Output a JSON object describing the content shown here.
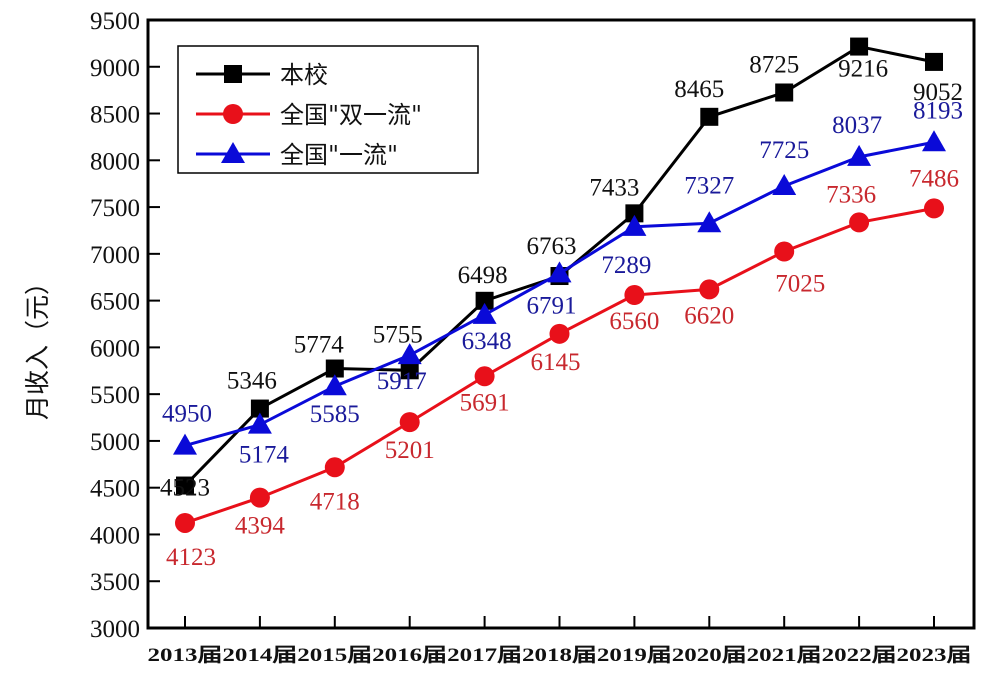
{
  "chart_data": {
    "type": "line",
    "title": "",
    "xlabel": "",
    "ylabel": "月收入（元）",
    "ylim": [
      3000,
      9500
    ],
    "yticks": [
      3000,
      3500,
      4000,
      4500,
      5000,
      5500,
      6000,
      6500,
      7000,
      7500,
      8000,
      8500,
      9000,
      9500
    ],
    "categories": [
      "2013届",
      "2014届",
      "2015届",
      "2016届",
      "2017届",
      "2018届",
      "2019届",
      "2020届",
      "2021届",
      "2022届",
      "2023届"
    ],
    "grid": false,
    "legend_position": "upper-left",
    "series": [
      {
        "name": "本校",
        "color": "#000000",
        "marker": "square",
        "values": [
          4523,
          5346,
          5774,
          5755,
          6498,
          6763,
          7433,
          8465,
          8725,
          9216,
          9052
        ]
      },
      {
        "name": "全国\"双一流\"",
        "color": "#e8101a",
        "marker": "circle",
        "values": [
          4123,
          4394,
          4718,
          5201,
          5691,
          6145,
          6560,
          6620,
          7025,
          7336,
          7486
        ]
      },
      {
        "name": "全国\"一流\"",
        "color": "#0a0ad8",
        "marker": "triangle",
        "values": [
          4950,
          5174,
          5585,
          5917,
          6348,
          6791,
          7289,
          7327,
          7725,
          8037,
          8193
        ]
      }
    ]
  },
  "label_colors": {
    "本校": "#111111",
    "全国\"双一流\"": "#c8282e",
    "全国\"一流\"": "#1a1a9a"
  }
}
